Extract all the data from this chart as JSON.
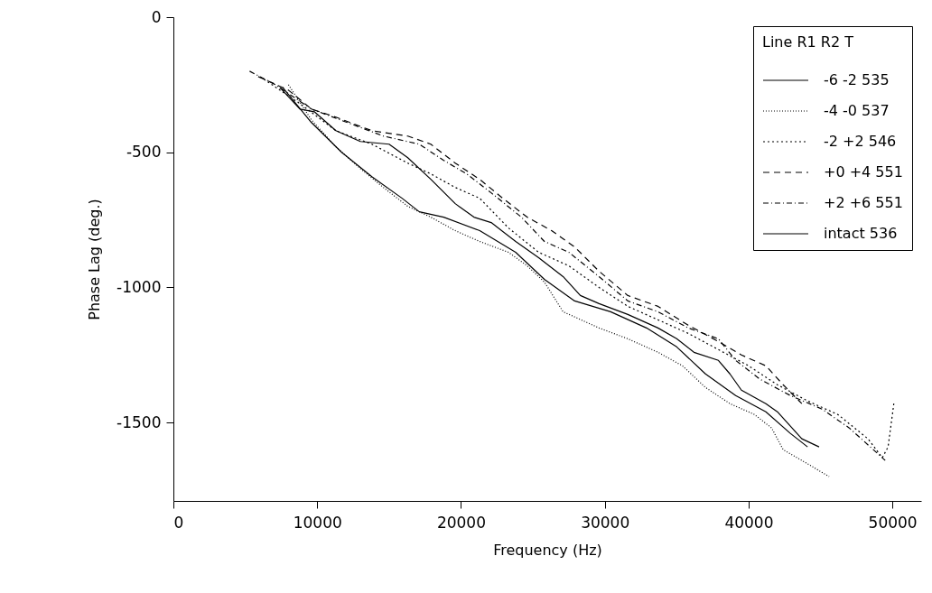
{
  "chart_data": {
    "type": "line",
    "xlabel": "Frequency (Hz)",
    "ylabel": "Phase Lag (deg.)",
    "xlim": [
      0,
      52000
    ],
    "ylim": [
      -1790,
      0
    ],
    "xticks": [
      0,
      10000,
      20000,
      30000,
      40000,
      50000
    ],
    "yticks": [
      0,
      -500,
      -1000,
      -1500
    ],
    "grid": false,
    "legend": "top right",
    "legend_title": "Line R1 R2 T",
    "series": [
      {
        "name": "-6 -2 535",
        "color": "#000000",
        "line_style": "solid",
        "x": [
          7600,
          9600,
          11700,
          13800,
          15900,
          17100,
          18800,
          21300,
          23800,
          25800,
          27900,
          30400,
          32900,
          35000,
          37000,
          39100,
          41200,
          42900,
          44100
        ],
        "values": [
          -260,
          -390,
          -500,
          -590,
          -670,
          -720,
          -740,
          -790,
          -870,
          -970,
          -1050,
          -1090,
          -1150,
          -1220,
          -1320,
          -1400,
          -1460,
          -1540,
          -1590
        ]
      },
      {
        "name": "-4 -0 537",
        "color": "#000000",
        "line_style": "dotted",
        "x": [
          8000,
          9600,
          11300,
          13000,
          14600,
          16300,
          17900,
          19600,
          21300,
          23300,
          24600,
          25800,
          27100,
          29600,
          31600,
          33700,
          35400,
          37000,
          38700,
          40400,
          41600,
          42400,
          43700,
          45600
        ],
        "values": [
          -250,
          -380,
          -480,
          -560,
          -630,
          -700,
          -740,
          -790,
          -830,
          -870,
          -920,
          -980,
          -1090,
          -1150,
          -1190,
          -1240,
          -1290,
          -1370,
          -1430,
          -1470,
          -1520,
          -1600,
          -1640,
          -1700
        ]
      },
      {
        "name": "-2 +2 546",
        "color": "#000000",
        "line_style": "densely_dashed",
        "x": [
          6300,
          8800,
          11300,
          13800,
          16300,
          17900,
          19600,
          21300,
          23300,
          25400,
          27500,
          29600,
          31600,
          33700,
          35800,
          37900,
          40000,
          42000,
          44100,
          46200,
          48300,
          49300,
          49700,
          50100
        ],
        "values": [
          -230,
          -320,
          -420,
          -470,
          -540,
          -580,
          -630,
          -670,
          -780,
          -870,
          -920,
          -1000,
          -1070,
          -1120,
          -1170,
          -1230,
          -1290,
          -1360,
          -1420,
          -1470,
          -1560,
          -1630,
          -1590,
          -1430
        ]
      },
      {
        "name": "+0 +4 551",
        "color": "#000000",
        "line_style": "dashed",
        "x": [
          5900,
          8000,
          9600,
          11300,
          13800,
          16300,
          17900,
          19600,
          21300,
          22900,
          24600,
          26300,
          27900,
          29600,
          31600,
          33700,
          35800,
          37900,
          39500,
          41200,
          42400,
          43700
        ],
        "values": [
          -220,
          -270,
          -340,
          -370,
          -420,
          -440,
          -470,
          -540,
          -600,
          -670,
          -740,
          -790,
          -850,
          -940,
          -1030,
          -1070,
          -1140,
          -1200,
          -1250,
          -1290,
          -1360,
          -1430
        ]
      },
      {
        "name": "+2 +6 551",
        "color": "#000000",
        "line_style": "dashdot",
        "x": [
          5300,
          7100,
          9600,
          12100,
          14600,
          17100,
          18800,
          20400,
          22100,
          24200,
          25800,
          27500,
          29600,
          31600,
          33700,
          35800,
          37900,
          39100,
          40800,
          42900,
          45100,
          47000,
          49500
        ],
        "values": [
          -200,
          -250,
          -340,
          -390,
          -440,
          -470,
          -530,
          -580,
          -650,
          -740,
          -830,
          -870,
          -960,
          -1050,
          -1090,
          -1150,
          -1190,
          -1270,
          -1340,
          -1400,
          -1450,
          -1520,
          -1640
        ]
      },
      {
        "name": "intact 536",
        "color": "#000000",
        "line_style": "solid",
        "x": [
          7400,
          8800,
          9800,
          11300,
          13000,
          15000,
          16300,
          17900,
          19600,
          20900,
          22100,
          23800,
          25400,
          27100,
          28300,
          29600,
          31600,
          33700,
          35000,
          36200,
          37900,
          38700,
          39500,
          41200,
          42000,
          43700,
          44900
        ],
        "values": [
          -260,
          -340,
          -350,
          -420,
          -460,
          -470,
          -520,
          -600,
          -690,
          -740,
          -760,
          -830,
          -890,
          -960,
          -1030,
          -1060,
          -1100,
          -1150,
          -1190,
          -1240,
          -1270,
          -1320,
          -1380,
          -1430,
          -1460,
          -1560,
          -1590
        ]
      }
    ]
  }
}
